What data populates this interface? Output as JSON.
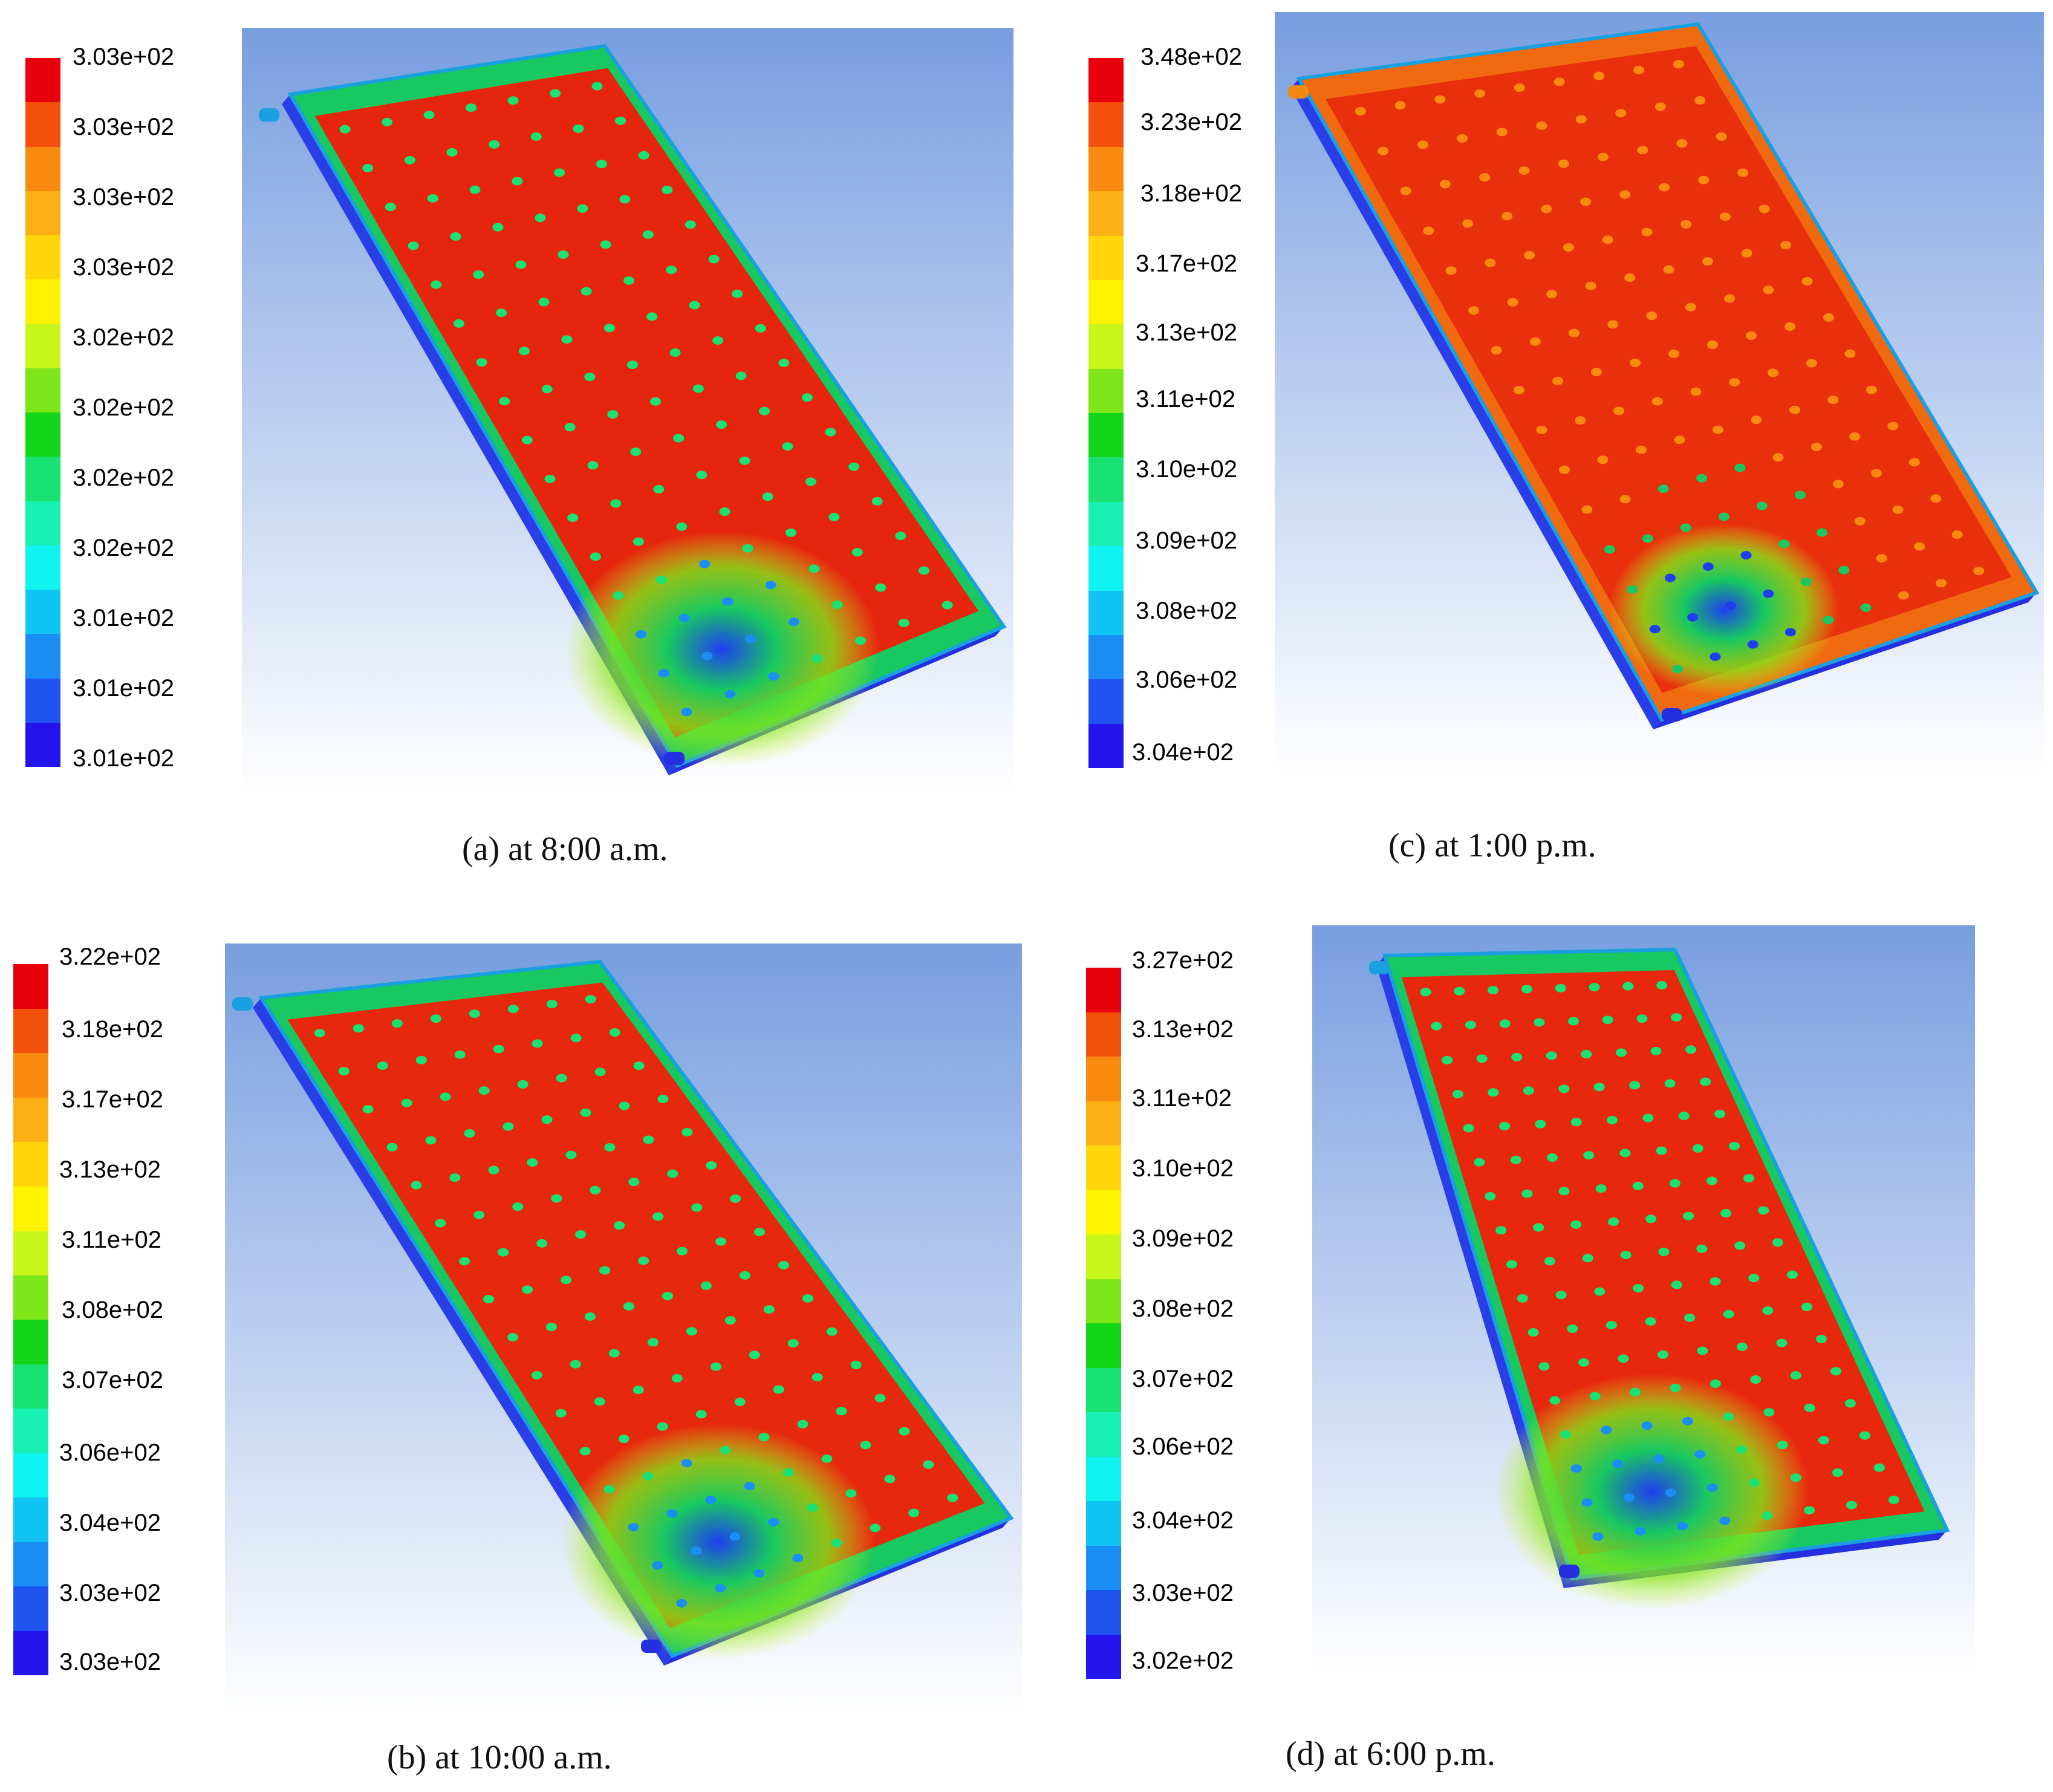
{
  "legend_colors": [
    "#e8000d",
    "#f2500b",
    "#f98a10",
    "#fdb015",
    "#ffd60a",
    "#fff200",
    "#c8f51a",
    "#7fe61a",
    "#12d61a",
    "#18e272",
    "#18f0b4",
    "#0ff4f0",
    "#10c4f4",
    "#1a8ef4",
    "#1f54f0",
    "#2414ec"
  ],
  "panels": [
    {
      "id": "a",
      "caption": "(a) at 8:00 a.m.",
      "legend_labels": [
        "3.03e+02",
        "3.03e+02",
        "3.03e+02",
        "3.03e+02",
        "3.02e+02",
        "3.02e+02",
        "3.02e+02",
        "3.02e+02",
        "3.01e+02",
        "3.01e+02",
        "3.01e+02"
      ],
      "plate_state": "hot-center-cool-bottom-left"
    },
    {
      "id": "c",
      "caption": "(c) at 1:00 p.m.",
      "legend_labels": [
        "3.48e+02",
        "3.23e+02",
        "3.18e+02",
        "3.17e+02",
        "3.13e+02",
        "3.11e+02",
        "3.10e+02",
        "3.09e+02",
        "3.08e+02",
        "3.06e+02",
        "3.04e+02"
      ],
      "plate_state": "hot-overall-cold-spot-outlet"
    },
    {
      "id": "b",
      "caption": "(b) at 10:00 a.m.",
      "legend_labels": [
        "3.22e+02",
        "3.18e+02",
        "3.17e+02",
        "3.13e+02",
        "3.11e+02",
        "3.08e+02",
        "3.07e+02",
        "3.06e+02",
        "3.04e+02",
        "3.03e+02",
        "3.03e+02"
      ],
      "plate_state": "hot-center-cool-bottom-left"
    },
    {
      "id": "d",
      "caption": "(d) at 6:00 p.m.",
      "legend_labels": [
        "3.27e+02",
        "3.13e+02",
        "3.11e+02",
        "3.10e+02",
        "3.09e+02",
        "3.08e+02",
        "3.07e+02",
        "3.06e+02",
        "3.04e+02",
        "3.03e+02",
        "3.02e+02"
      ],
      "plate_state": "hot-center-cool-bottom-left"
    }
  ]
}
